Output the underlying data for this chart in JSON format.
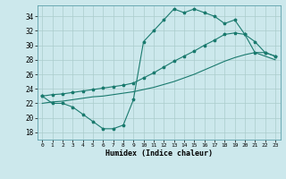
{
  "background_color": "#cce8ec",
  "grid_color": "#aacccc",
  "line_color": "#1a7a6e",
  "xlabel": "Humidex (Indice chaleur)",
  "xlim": [
    -0.5,
    23.5
  ],
  "ylim": [
    17.0,
    35.5
  ],
  "yticks": [
    18,
    20,
    22,
    24,
    26,
    28,
    30,
    32,
    34
  ],
  "xticks": [
    0,
    1,
    2,
    3,
    4,
    5,
    6,
    7,
    8,
    9,
    10,
    11,
    12,
    13,
    14,
    15,
    16,
    17,
    18,
    19,
    20,
    21,
    22,
    23
  ],
  "line1_x": [
    0,
    1,
    2,
    3,
    4,
    5,
    6,
    7,
    8,
    9,
    10,
    11,
    12,
    13,
    14,
    15,
    16,
    17,
    18,
    19,
    20,
    21,
    22,
    23
  ],
  "line1_y": [
    23.0,
    22.0,
    22.0,
    21.5,
    20.5,
    19.5,
    18.5,
    18.5,
    19.0,
    22.5,
    30.5,
    32.0,
    33.5,
    35.0,
    34.5,
    35.0,
    34.5,
    34.0,
    33.0,
    33.5,
    31.5,
    29.0,
    29.0,
    28.5
  ],
  "line2_x": [
    0,
    1,
    2,
    3,
    4,
    5,
    6,
    7,
    8,
    9,
    10,
    11,
    12,
    13,
    14,
    15,
    16,
    17,
    18,
    19,
    20,
    21,
    22,
    23
  ],
  "line2_y": [
    23.0,
    23.2,
    23.3,
    23.5,
    23.7,
    23.9,
    24.1,
    24.3,
    24.5,
    24.8,
    25.5,
    26.2,
    27.0,
    27.8,
    28.5,
    29.2,
    30.0,
    30.7,
    31.5,
    31.7,
    31.5,
    30.5,
    29.0,
    28.5
  ],
  "line3_x": [
    0,
    1,
    2,
    3,
    4,
    5,
    6,
    7,
    8,
    9,
    10,
    11,
    12,
    13,
    14,
    15,
    16,
    17,
    18,
    19,
    20,
    21,
    22,
    23
  ],
  "line3_y": [
    22.0,
    22.2,
    22.3,
    22.5,
    22.7,
    22.9,
    23.0,
    23.2,
    23.4,
    23.6,
    23.9,
    24.2,
    24.6,
    25.0,
    25.5,
    26.0,
    26.6,
    27.2,
    27.8,
    28.3,
    28.7,
    29.0,
    28.5,
    28.0
  ]
}
